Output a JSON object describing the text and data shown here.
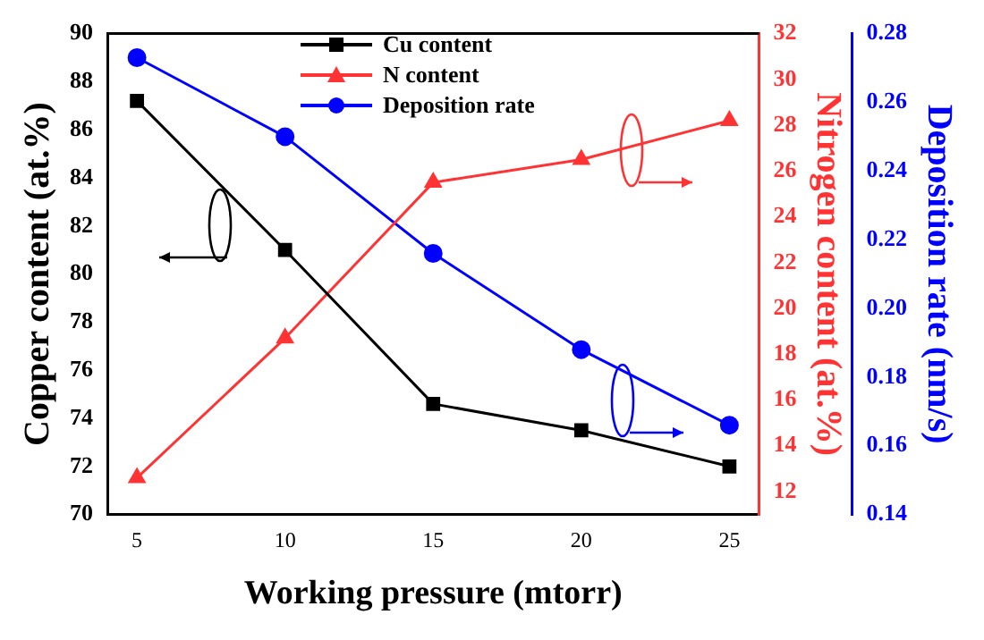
{
  "chart_data": {
    "type": "line",
    "xlabel": "Working pressure (mtorr)",
    "ylabel": "Copper content (at.%)",
    "y2label": "Nitrogen content (at.%)",
    "y3label": "Deposition rate (nm/s)",
    "x": [
      5,
      10,
      15,
      20,
      25
    ],
    "xlim": [
      4,
      26
    ],
    "xticks": [
      5,
      10,
      15,
      20,
      25
    ],
    "ylim": [
      70,
      90
    ],
    "yticks": [
      70,
      72,
      74,
      76,
      78,
      80,
      82,
      84,
      86,
      88,
      90
    ],
    "y2lim": [
      11,
      32
    ],
    "y2ticks": [
      12,
      14,
      16,
      18,
      20,
      22,
      24,
      26,
      28,
      30,
      32
    ],
    "y3lim": [
      0.14,
      0.28
    ],
    "y3ticks": [
      0.14,
      0.16,
      0.18,
      {
        "value": 0.2,
        "label": "0.20"
      },
      0.22,
      0.24,
      0.26,
      0.28
    ],
    "grid": false,
    "legend": "top",
    "line_style": "solid",
    "series": [
      {
        "name": "Cu content",
        "color": "#000000",
        "marker": "square",
        "values": [
          87.2,
          81.0,
          74.6,
          73.5,
          72.0
        ]
      },
      {
        "name": "N content",
        "color": "#ff3333",
        "marker": "triangle",
        "axis": "y2",
        "values": [
          12.6,
          18.7,
          25.5,
          26.5,
          28.2
        ]
      },
      {
        "name": "Deposition rate",
        "color": "#0000ff",
        "marker": "circle",
        "axis": "y3",
        "values": [
          0.273,
          0.25,
          0.216,
          0.188,
          0.166
        ]
      }
    ]
  }
}
